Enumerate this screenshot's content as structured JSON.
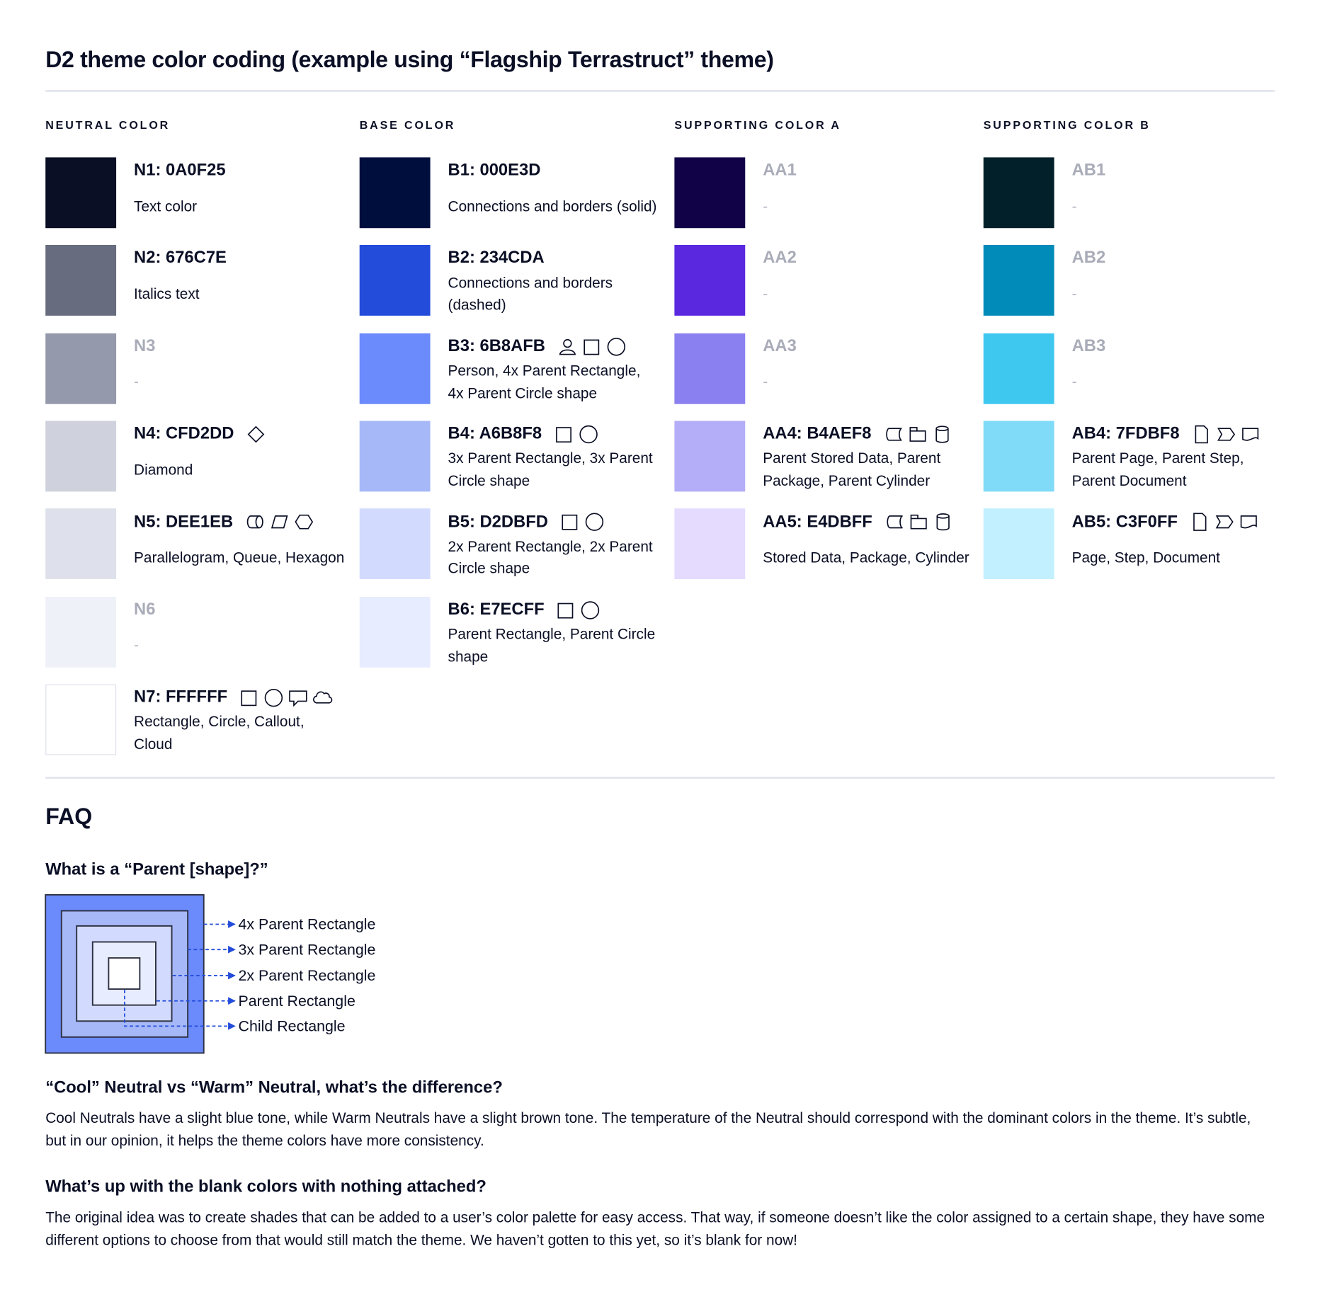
{
  "title": "D2 theme color coding (example using “Flagship Terrastruct” theme)",
  "columns": [
    {
      "header": "NEUTRAL COLOR",
      "items": [
        {
          "label": "N1: 0A0F25",
          "color": "#0A0F25",
          "desc": "Text color",
          "icons": []
        },
        {
          "label": "N2: 676C7E",
          "color": "#676C7E",
          "desc": "Italics text",
          "icons": []
        },
        {
          "label": "N3",
          "color": "#9499AB",
          "desc": "-",
          "icons": [],
          "blank": true
        },
        {
          "label": "N4: CFD2DD",
          "color": "#CFD2DD",
          "desc": "Diamond",
          "icons": [
            "diamond-icon"
          ]
        },
        {
          "label": "N5: DEE1EB",
          "color": "#DEE1EB",
          "desc": "Parallelogram, Queue, Hexagon",
          "icons": [
            "queue-icon",
            "parallelogram-icon",
            "hexagon-icon"
          ]
        },
        {
          "label": "N6",
          "color": "#EEF1F8",
          "desc": "-",
          "icons": [],
          "blank": true
        },
        {
          "label": "N7: FFFFFF",
          "color": "#FFFFFF",
          "desc": "Rectangle, Circle, Callout, Cloud",
          "icons": [
            "rectangle-icon",
            "circle-icon",
            "callout-icon",
            "cloud-icon"
          ]
        }
      ]
    },
    {
      "header": "BASE COLOR",
      "items": [
        {
          "label": "B1: 000E3D",
          "color": "#000E3D",
          "desc": "Connections and borders (solid)",
          "icons": []
        },
        {
          "label": "B2: 234CDA",
          "color": "#234CDA",
          "desc": "Connections and borders (dashed)",
          "icons": []
        },
        {
          "label": "B3: 6B8AFB",
          "color": "#6B8AFB",
          "desc": "Person, 4x Parent Rectangle, 4x Parent Circle shape",
          "icons": [
            "person-icon",
            "rectangle-icon",
            "circle-icon"
          ]
        },
        {
          "label": "B4: A6B8F8",
          "color": "#A6B8F8",
          "desc": "3x Parent Rectangle, 3x Parent Circle shape",
          "icons": [
            "rectangle-icon",
            "circle-icon"
          ]
        },
        {
          "label": "B5: D2DBFD",
          "color": "#D2DBFD",
          "desc": "2x Parent Rectangle, 2x Parent Circle shape",
          "icons": [
            "rectangle-icon",
            "circle-icon"
          ]
        },
        {
          "label": "B6: E7ECFF",
          "color": "#E7ECFF",
          "desc": "Parent Rectangle, Parent Circle shape",
          "icons": [
            "rectangle-icon",
            "circle-icon"
          ]
        }
      ]
    },
    {
      "header": "SUPPORTING COLOR A",
      "items": [
        {
          "label": "AA1",
          "color": "#110147",
          "desc": "-",
          "icons": [],
          "blank": true
        },
        {
          "label": "AA2",
          "color": "#5A28DE",
          "desc": "-",
          "icons": [],
          "blank": true
        },
        {
          "label": "AA3",
          "color": "#8B80F0",
          "desc": "-",
          "icons": [],
          "blank": true
        },
        {
          "label": "AA4: B4AEF8",
          "color": "#B4AEF8",
          "desc": "Parent Stored Data, Parent Package,  Parent Cylinder",
          "icons": [
            "stored-data-icon",
            "package-icon",
            "cylinder-icon"
          ]
        },
        {
          "label": "AA5: E4DBFF",
          "color": "#E4DBFF",
          "desc": "Stored Data, Package, Cylinder",
          "icons": [
            "stored-data-icon",
            "package-icon",
            "cylinder-icon"
          ]
        }
      ]
    },
    {
      "header": "SUPPORTING COLOR B",
      "items": [
        {
          "label": "AB1",
          "color": "#01202A",
          "desc": "-",
          "icons": [],
          "blank": true
        },
        {
          "label": "AB2",
          "color": "#008BB8",
          "desc": "-",
          "icons": [],
          "blank": true
        },
        {
          "label": "AB3",
          "color": "#3FC8EF",
          "desc": "-",
          "icons": [],
          "blank": true
        },
        {
          "label": "AB4: 7FDBF8",
          "color": "#7FDBF8",
          "desc": "Parent Page, Parent Step, Parent Document",
          "icons": [
            "page-icon",
            "step-icon",
            "document-icon"
          ]
        },
        {
          "label": "AB5: C3F0FF",
          "color": "#C3F0FF",
          "desc": "Page, Step, Document",
          "icons": [
            "page-icon",
            "step-icon",
            "document-icon"
          ]
        }
      ]
    }
  ],
  "faq": {
    "heading": "FAQ",
    "q1": "What is a “Parent [shape]?”",
    "diagram_labels": [
      "4x Parent Rectangle",
      "3x Parent Rectangle",
      "2x Parent Rectangle",
      "Parent Rectangle",
      "Child Rectangle"
    ],
    "diagram_colors": [
      "#6B8AFB",
      "#A6B8F8",
      "#D2DBFD",
      "#E7ECFF",
      "#FFFFFF"
    ],
    "arrow_color": "#234CDA",
    "q2": "“Cool” Neutral vs “Warm” Neutral, what’s the difference?",
    "a2": "Cool Neutrals have a slight blue tone, while Warm Neutrals have a slight brown tone. The temperature of the Neutral should correspond with the dominant colors in the theme. It’s subtle, but in our opinion, it helps the theme colors have more consistency.",
    "q3": "What’s up with the blank colors with nothing attached?",
    "a3": "The original idea was to create shades that can be added to a user’s color palette for easy access. That way, if someone doesn’t like the color assigned to a certain shape, they have some different options to choose from that would still match the theme. We haven’t gotten to this yet, so it’s blank for now!"
  }
}
